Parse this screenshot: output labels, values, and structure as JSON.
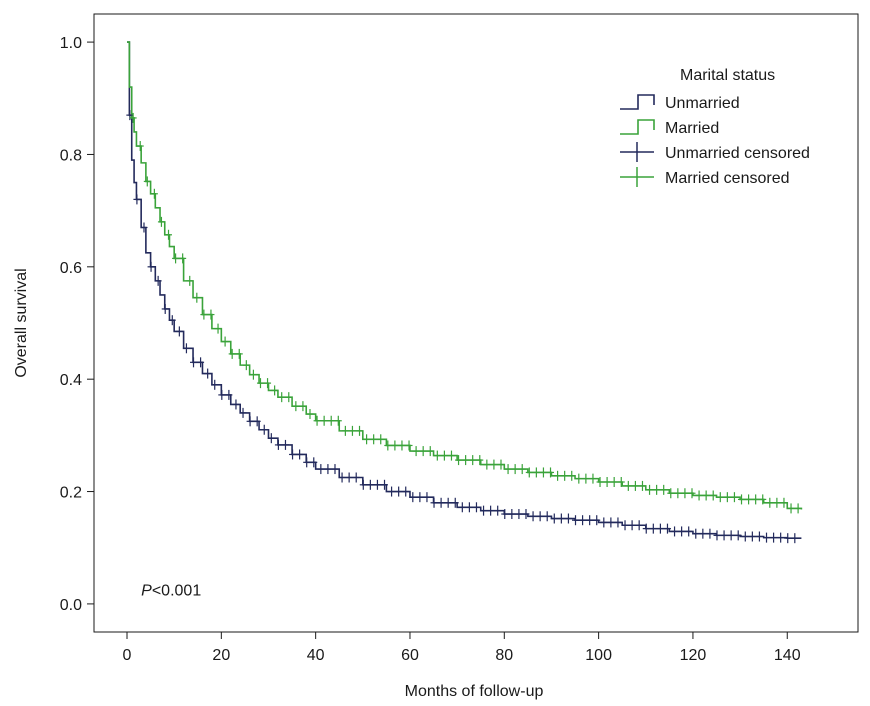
{
  "chart_data": {
    "type": "line",
    "step": true,
    "xlabel": "Months of follow-up",
    "ylabel": "Overall survival",
    "xlim": [
      -7,
      155
    ],
    "ylim": [
      -0.05,
      1.05
    ],
    "xticks": [
      0,
      20,
      40,
      60,
      80,
      100,
      120,
      140
    ],
    "yticks": [
      0.0,
      0.2,
      0.4,
      0.6,
      0.8,
      1.0
    ],
    "xtick_labels": [
      "0",
      "20",
      "40",
      "60",
      "80",
      "100",
      "120",
      "140"
    ],
    "ytick_labels": [
      "0.0",
      "0.2",
      "0.4",
      "0.6",
      "0.8",
      "1.0"
    ],
    "annotation": {
      "p_prefix": "P",
      "p_suffix": "<0.001",
      "x": 3,
      "y": 0.015
    },
    "legend": {
      "title": "Marital status",
      "placement": "top-right",
      "entries": [
        {
          "label": "Unmarried",
          "kind": "step",
          "color": "#232a5c"
        },
        {
          "label": "Married",
          "kind": "step",
          "color": "#3aa33a"
        },
        {
          "label": "Unmarried censored",
          "kind": "censor",
          "color": "#232a5c"
        },
        {
          "label": "Married censored",
          "kind": "censor",
          "color": "#3aa33a"
        }
      ]
    },
    "series": [
      {
        "name": "Unmarried",
        "color": "#232a5c",
        "x": [
          0,
          0.5,
          1,
          1.5,
          2,
          3,
          4,
          5,
          6,
          7,
          8,
          9,
          10,
          12,
          14,
          16,
          18,
          20,
          22,
          24,
          26,
          28,
          30,
          32,
          35,
          38,
          40,
          45,
          50,
          55,
          60,
          65,
          70,
          75,
          80,
          85,
          90,
          95,
          100,
          105,
          110,
          115,
          120,
          125,
          130,
          135,
          140,
          143
        ],
        "y": [
          1.0,
          0.87,
          0.79,
          0.75,
          0.72,
          0.67,
          0.625,
          0.6,
          0.575,
          0.55,
          0.525,
          0.505,
          0.485,
          0.455,
          0.43,
          0.41,
          0.39,
          0.372,
          0.355,
          0.34,
          0.325,
          0.31,
          0.295,
          0.283,
          0.266,
          0.252,
          0.24,
          0.225,
          0.212,
          0.2,
          0.19,
          0.18,
          0.172,
          0.166,
          0.16,
          0.156,
          0.152,
          0.149,
          0.145,
          0.14,
          0.134,
          0.129,
          0.125,
          0.122,
          0.12,
          0.118,
          0.117,
          0.117
        ]
      },
      {
        "name": "Married",
        "color": "#3aa33a",
        "x": [
          0,
          0.5,
          1,
          1.5,
          2,
          3,
          4,
          5,
          6,
          7,
          8,
          9,
          10,
          12,
          14,
          16,
          18,
          20,
          22,
          24,
          26,
          28,
          30,
          32,
          35,
          38,
          40,
          45,
          50,
          55,
          60,
          65,
          70,
          75,
          80,
          85,
          90,
          95,
          100,
          105,
          110,
          115,
          120,
          125,
          130,
          135,
          140,
          143
        ],
        "y": [
          1.0,
          0.92,
          0.865,
          0.84,
          0.815,
          0.785,
          0.752,
          0.73,
          0.705,
          0.68,
          0.657,
          0.636,
          0.615,
          0.575,
          0.545,
          0.515,
          0.49,
          0.467,
          0.445,
          0.425,
          0.408,
          0.393,
          0.38,
          0.368,
          0.352,
          0.338,
          0.326,
          0.308,
          0.293,
          0.282,
          0.272,
          0.264,
          0.256,
          0.248,
          0.24,
          0.234,
          0.228,
          0.223,
          0.217,
          0.21,
          0.203,
          0.197,
          0.193,
          0.19,
          0.186,
          0.18,
          0.17,
          0.168
        ]
      }
    ]
  }
}
